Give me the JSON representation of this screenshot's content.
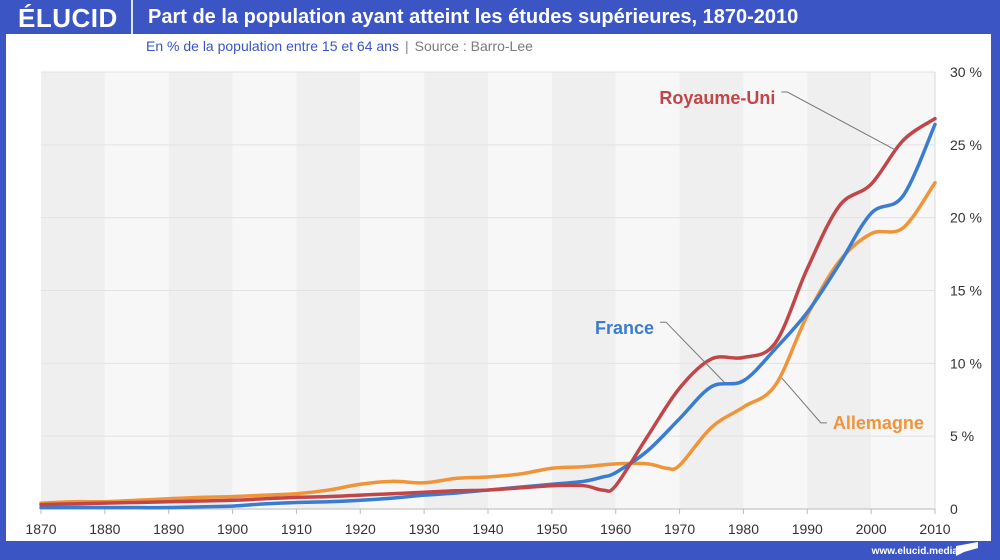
{
  "brand": {
    "logo": "ÉLUCID",
    "url": "www.elucid.media"
  },
  "header": {
    "title": "Part de la population ayant atteint les études supérieures, 1870-2010",
    "subtitle": "En % de la population entre 15 et 64 ans",
    "separator": "|",
    "source": "Source : Barro-Lee"
  },
  "colors": {
    "brand_blue": "#3b55c4",
    "uk": "#c0464a",
    "france": "#3a7ccf",
    "germany": "#f0943a"
  },
  "chart_data": {
    "type": "line",
    "title": "Part de la population ayant atteint les études supérieures, 1870-2010",
    "xlabel": "",
    "ylabel": "En % de la population entre 15 et 64 ans",
    "xlim": [
      1870,
      2010
    ],
    "ylim": [
      0,
      30
    ],
    "x_ticks": [
      1870,
      1880,
      1890,
      1900,
      1910,
      1920,
      1930,
      1940,
      1950,
      1960,
      1970,
      1980,
      1990,
      2000,
      2010
    ],
    "x_tick_labels": [
      "1870",
      "1880",
      "1890",
      "1900",
      "1910",
      "1920",
      "1930",
      "1940",
      "1950",
      "1960",
      "1970",
      "1980",
      "1990",
      "2000",
      "2010"
    ],
    "y_ticks": [
      0,
      5,
      10,
      15,
      20,
      25,
      30
    ],
    "y_tick_labels": [
      "0",
      "5 %",
      "10 %",
      "15 %",
      "20 %",
      "25 %",
      "30 %"
    ],
    "y_axis_side": "right",
    "grid": true,
    "legend": "inline-labels",
    "series": [
      {
        "name": "Royaume-Uni",
        "color": "#c0464a",
        "x": [
          1870,
          1875,
          1880,
          1885,
          1890,
          1895,
          1900,
          1905,
          1910,
          1915,
          1920,
          1925,
          1930,
          1935,
          1940,
          1945,
          1950,
          1955,
          1958,
          1960,
          1965,
          1970,
          1975,
          1980,
          1985,
          1990,
          1995,
          2000,
          2005,
          2010
        ],
        "values": [
          0.3,
          0.35,
          0.4,
          0.45,
          0.5,
          0.55,
          0.6,
          0.7,
          0.8,
          0.85,
          0.95,
          1.05,
          1.15,
          1.25,
          1.3,
          1.45,
          1.6,
          1.6,
          1.3,
          1.6,
          5.0,
          8.3,
          10.3,
          10.4,
          11.4,
          16.5,
          20.8,
          22.3,
          25.3,
          26.8
        ]
      },
      {
        "name": "France",
        "color": "#3a7ccf",
        "x": [
          1870,
          1875,
          1880,
          1885,
          1890,
          1895,
          1900,
          1905,
          1910,
          1915,
          1920,
          1925,
          1930,
          1935,
          1940,
          1945,
          1950,
          1955,
          1958,
          1960,
          1965,
          1970,
          1975,
          1980,
          1985,
          1990,
          1995,
          2000,
          2005,
          2010
        ],
        "values": [
          0.1,
          0.1,
          0.1,
          0.1,
          0.1,
          0.15,
          0.2,
          0.35,
          0.45,
          0.5,
          0.6,
          0.75,
          0.95,
          1.1,
          1.3,
          1.5,
          1.7,
          1.9,
          2.2,
          2.5,
          4.0,
          6.2,
          8.4,
          8.8,
          11.0,
          13.5,
          16.8,
          20.3,
          21.5,
          26.4
        ]
      },
      {
        "name": "Allemagne",
        "color": "#f0943a",
        "x": [
          1870,
          1875,
          1880,
          1885,
          1890,
          1895,
          1900,
          1905,
          1910,
          1915,
          1920,
          1925,
          1930,
          1935,
          1940,
          1945,
          1950,
          1955,
          1960,
          1965,
          1968,
          1970,
          1975,
          1980,
          1985,
          1990,
          1995,
          2000,
          2005,
          2010
        ],
        "values": [
          0.4,
          0.5,
          0.5,
          0.6,
          0.7,
          0.8,
          0.85,
          0.95,
          1.05,
          1.3,
          1.7,
          1.9,
          1.8,
          2.1,
          2.2,
          2.4,
          2.8,
          2.9,
          3.1,
          3.1,
          2.8,
          3.0,
          5.6,
          7.0,
          8.5,
          13.3,
          17.0,
          18.9,
          19.3,
          22.4
        ]
      }
    ],
    "annotations": [
      {
        "text": "Royaume-Uni",
        "series": "Royaume-Uni",
        "pointer_year": 2004,
        "pointer_value": 24.6,
        "label_year": 1985,
        "label_value": 27.8
      },
      {
        "text": "France",
        "series": "France",
        "pointer_year": 1977,
        "pointer_value": 8.7,
        "label_year": 1966,
        "label_value": 12.0
      },
      {
        "text": "Allemagne",
        "series": "Allemagne",
        "pointer_year": 1986,
        "pointer_value": 9.0,
        "label_year": 1994,
        "label_value": 5.5
      }
    ]
  }
}
